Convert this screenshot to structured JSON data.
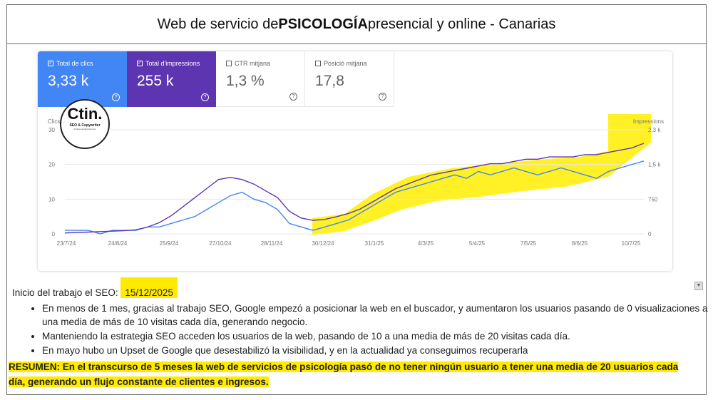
{
  "header": {
    "title_prefix": "Web de servicio de ",
    "title_bold": "PSICOLOGÍA",
    "title_suffix": " presencial y online - Canarias"
  },
  "metrics": [
    {
      "label": "Total de clics",
      "value": "3,33 k",
      "checked": true,
      "color": "#4285f4"
    },
    {
      "label": "Total d'impressions",
      "value": "255 k",
      "checked": true,
      "color": "#5e35b1"
    },
    {
      "label": "CTR mitjana",
      "value": "1,3 %",
      "checked": false
    },
    {
      "label": "Posició mitjana",
      "value": "17,8",
      "checked": false
    }
  ],
  "logo": {
    "brand": "Ctin.",
    "subtitle": "SEO & Copywriter",
    "tiny": "cristina.seo@gmail.com"
  },
  "chart_data": {
    "type": "line",
    "left_axis_label": "Clics",
    "right_axis_label": "Impressions",
    "left_ticks": [
      "30",
      "20",
      "10",
      "0"
    ],
    "right_ticks": [
      "2,3 k",
      "1,5 k",
      "750",
      "0"
    ],
    "x_ticks": [
      "23/7/24",
      "24/8/24",
      "25/9/24",
      "27/10/24",
      "28/11/24",
      "30/12/24",
      "31/1/25",
      "4/3/25",
      "5/4/25",
      "7/5/25",
      "8/6/25",
      "10/7/25"
    ],
    "ylim_left": [
      0,
      30
    ],
    "ylim_right": [
      0,
      2300
    ],
    "series": [
      {
        "name": "Clics",
        "axis": "left",
        "color": "#4285f4",
        "values": [
          1,
          1,
          1,
          0,
          1,
          1,
          1,
          2,
          2,
          3,
          4,
          5,
          7,
          9,
          11,
          12,
          10,
          9,
          7,
          3,
          2,
          1,
          2,
          3,
          4,
          6,
          8,
          10,
          12,
          13,
          14,
          15,
          16,
          17,
          16,
          18,
          17,
          18,
          19,
          18,
          17,
          18,
          19,
          18,
          17,
          16,
          18,
          19,
          20,
          21
        ]
      },
      {
        "name": "Impressions",
        "axis": "right",
        "color": "#5e35b1",
        "values": [
          20,
          30,
          40,
          50,
          60,
          70,
          90,
          150,
          250,
          400,
          600,
          800,
          1000,
          1200,
          1250,
          1200,
          1100,
          950,
          800,
          500,
          350,
          300,
          320,
          380,
          450,
          550,
          700,
          850,
          1000,
          1100,
          1200,
          1300,
          1350,
          1400,
          1450,
          1500,
          1550,
          1550,
          1600,
          1650,
          1650,
          1700,
          1700,
          1700,
          1750,
          1750,
          1800,
          1850,
          1900,
          2000
        ]
      }
    ]
  },
  "description": {
    "intro_prefix": "Inicio del trabajo el SEO: ",
    "intro_date": "15/12/2025",
    "bullets": [
      "En menos de 1 mes, gracias al trabajo SEO, Google empezó a posicionar la web en el buscador, y aumentaron los usuarios pasando de 0 visualizaciones a una media de más de 10 visitas cada día, generando negocio.",
      "Manteniendo la estrategia SEO acceden los usuarios de la web, pasando de 10 a una media de más de 20 visitas cada día.",
      "En mayo hubo un Upset de Google que desestabilizó la visibilidad, y en la actualidad ya conseguimos recuperarla"
    ],
    "summary": "RESUMEN: En el transcurso de 5 meses la web de servicios de psicología pasó de no tener ningún usuario a tener una media de 20 usuarios cada día, generando un flujo constante de clientes e ingresos."
  }
}
